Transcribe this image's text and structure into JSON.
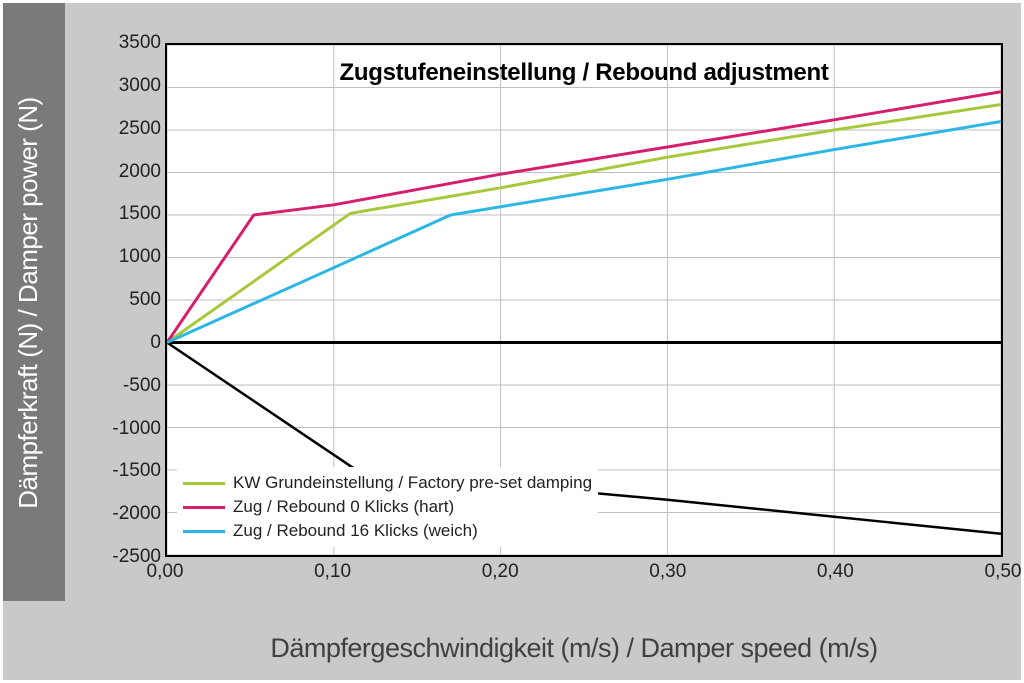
{
  "chart": {
    "type": "line",
    "title": "Zugstufeneinstellung / Rebound adjustment",
    "title_fontsize": 24,
    "title_weight": "700",
    "x_axis": {
      "label": "Dämpfergeschwindigkeit (m/s) / Damper speed (m/s)",
      "label_fontsize": 27,
      "label_color": "#404040",
      "min": 0.0,
      "max": 0.5,
      "tick_step": 0.1,
      "ticks": [
        "0,00",
        "0,10",
        "0,20",
        "0,30",
        "0,40",
        "0,50"
      ]
    },
    "y_axis": {
      "label": "Dämpferkraft (N) / Damper power (N)",
      "label_fontsize": 26,
      "label_color": "#ffffff",
      "min": -2500,
      "max": 3500,
      "tick_step": 500,
      "ticks": [
        "3500",
        "3000",
        "2500",
        "2000",
        "1500",
        "1000",
        "500",
        "0",
        "-500",
        "-1000",
        "-1500",
        "-2000",
        "-2500"
      ]
    },
    "background_color": "#ffffff",
    "grid_color": "#bfbfbf",
    "axis_color": "#000000",
    "frame_outer_color": "#c9c9c9",
    "frame_y_band_color": "#7a7a7a",
    "line_width_series": 3,
    "line_width_zero": 3,
    "series": [
      {
        "name": "KW Grundeinstellung / Factory pre-set damping",
        "color": "#a8c83c",
        "x": [
          0.0,
          0.11,
          0.2,
          0.3,
          0.4,
          0.5
        ],
        "y": [
          0,
          1520,
          1820,
          2180,
          2500,
          2800
        ]
      },
      {
        "name": "Zug / Rebound 0 Klicks (hart)",
        "color": "#d61e6e",
        "x": [
          0.0,
          0.052,
          0.1,
          0.2,
          0.3,
          0.4,
          0.5
        ],
        "y": [
          0,
          1500,
          1620,
          1980,
          2300,
          2620,
          2950
        ]
      },
      {
        "name": "Zug / Rebound 16 Klicks (weich)",
        "color": "#2bb6e6",
        "x": [
          0.0,
          0.1,
          0.17,
          0.3,
          0.4,
          0.5
        ],
        "y": [
          0,
          880,
          1500,
          1920,
          2270,
          2600
        ]
      }
    ],
    "lower_curve": {
      "color": "#000000",
      "x": [
        0.0,
        0.115,
        0.3,
        0.4,
        0.5
      ],
      "y": [
        0,
        -1520,
        -1850,
        -2050,
        -2250
      ]
    }
  }
}
